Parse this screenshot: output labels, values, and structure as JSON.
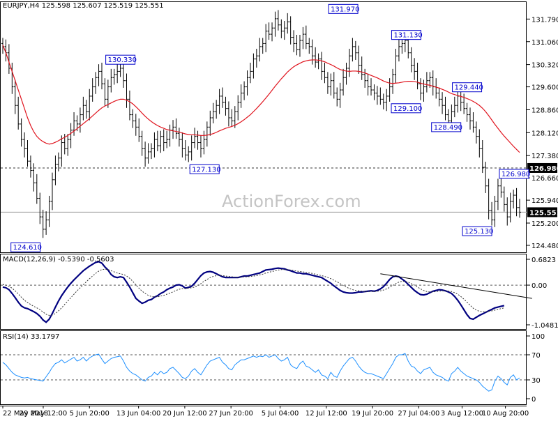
{
  "chart_data": [
    {
      "type": "candlestick",
      "panel": "price",
      "title": "EURJPY,H4  125.598 125.607 125.519 125.551",
      "watermark": "ActionForex.com",
      "ylim": [
        124.48,
        132.0
      ],
      "y_ticks": [
        "131.790",
        "131.060",
        "130.320",
        "129.600",
        "128.860",
        "128.120",
        "127.380",
        "126.660",
        "125.940",
        "125.200",
        "124.480"
      ],
      "levels": [
        {
          "value": 126.98,
          "label": "126.980",
          "style": "dashed",
          "label_color": "#000000",
          "text_color": "#ffffff"
        },
        {
          "value": 125.551,
          "label": "125.551",
          "style": "solid",
          "label_color": "#000000",
          "text_color": "#ffffff"
        }
      ],
      "moving_average_color": "#e0141e",
      "annotations": [
        {
          "text": "124.610",
          "idx": 13,
          "value": 124.61
        },
        {
          "text": "130.330",
          "idx": 38,
          "value": 130.33
        },
        {
          "text": "127.130",
          "idx": 60,
          "value": 127.13
        },
        {
          "text": "131.970",
          "idx": 110,
          "value": 131.97
        },
        {
          "text": "129.100",
          "idx": 135,
          "value": 129.1
        },
        {
          "text": "131.130",
          "idx": 136,
          "value": 131.13
        },
        {
          "text": "129.440",
          "idx": 150,
          "value": 129.44
        },
        {
          "text": "128.490",
          "idx": 148,
          "value": 128.49
        },
        {
          "text": "126.980",
          "idx": 160,
          "value": 126.98
        },
        {
          "text": "125.130",
          "idx": 158,
          "value": 125.13
        }
      ],
      "close": [
        130.9,
        130.7,
        130.2,
        129.6,
        129.0,
        128.4,
        127.9,
        127.6,
        127.2,
        126.9,
        126.5,
        126.0,
        125.4,
        125.0,
        125.3,
        125.9,
        126.6,
        127.1,
        127.3,
        127.8,
        127.6,
        127.9,
        128.2,
        128.5,
        128.4,
        128.7,
        129.0,
        128.8,
        129.3,
        129.6,
        129.9,
        130.1,
        129.7,
        129.2,
        129.6,
        129.9,
        130.0,
        130.1,
        130.2,
        129.8,
        129.2,
        128.7,
        128.5,
        128.3,
        128.0,
        127.6,
        127.3,
        127.5,
        127.6,
        127.9,
        127.7,
        128.0,
        127.8,
        127.9,
        128.2,
        128.3,
        128.1,
        127.9,
        127.6,
        127.4,
        127.5,
        127.8,
        128.0,
        127.8,
        127.6,
        127.9,
        128.3,
        128.6,
        128.8,
        129.0,
        129.3,
        129.1,
        128.9,
        128.6,
        128.5,
        128.8,
        129.1,
        129.4,
        129.6,
        129.9,
        130.1,
        130.5,
        130.6,
        130.9,
        131.0,
        131.4,
        131.3,
        131.5,
        131.8,
        131.6,
        131.4,
        131.5,
        131.7,
        131.2,
        131.0,
        130.8,
        131.1,
        131.3,
        131.0,
        130.9,
        130.6,
        130.4,
        130.5,
        130.1,
        129.9,
        129.6,
        129.8,
        129.4,
        129.2,
        129.5,
        129.9,
        130.2,
        130.6,
        130.9,
        130.7,
        130.3,
        130.0,
        129.8,
        129.6,
        129.5,
        129.4,
        129.3,
        129.2,
        129.1,
        129.3,
        129.6,
        130.0,
        130.6,
        130.9,
        131.0,
        131.1,
        130.7,
        130.3,
        130.1,
        129.7,
        129.4,
        129.6,
        129.8,
        129.9,
        129.6,
        129.4,
        129.2,
        129.0,
        128.7,
        128.5,
        128.8,
        129.0,
        129.3,
        129.1,
        128.9,
        128.7,
        128.5,
        128.3,
        128.0,
        127.6,
        127.0,
        126.4,
        125.6,
        125.3,
        125.9,
        126.4,
        126.2,
        125.8,
        125.4,
        125.9,
        126.1,
        125.7,
        125.551
      ],
      "ma": [
        130.95,
        130.7,
        130.4,
        130.1,
        129.8,
        129.5,
        129.2,
        128.9,
        128.6,
        128.35,
        128.15,
        128.0,
        127.9,
        127.83,
        127.78,
        127.75,
        127.77,
        127.81,
        127.86,
        127.92,
        127.97,
        128.03,
        128.1,
        128.17,
        128.25,
        128.33,
        128.41,
        128.49,
        128.57,
        128.66,
        128.75,
        128.84,
        128.92,
        128.98,
        129.03,
        129.08,
        129.13,
        129.17,
        129.2,
        129.2,
        129.17,
        129.12,
        129.05,
        128.96,
        128.86,
        128.75,
        128.65,
        128.56,
        128.48,
        128.41,
        128.35,
        128.3,
        128.26,
        128.22,
        128.2,
        128.18,
        128.16,
        128.14,
        128.11,
        128.08,
        128.06,
        128.05,
        128.05,
        128.04,
        128.03,
        128.03,
        128.04,
        128.06,
        128.09,
        128.13,
        128.18,
        128.22,
        128.26,
        128.29,
        128.32,
        128.36,
        128.41,
        128.47,
        128.54,
        128.62,
        128.7,
        128.8,
        128.9,
        129.01,
        129.12,
        129.24,
        129.36,
        129.49,
        129.62,
        129.74,
        129.86,
        129.97,
        130.08,
        130.17,
        130.25,
        130.31,
        130.36,
        130.41,
        130.44,
        130.46,
        130.47,
        130.47,
        130.46,
        130.44,
        130.41,
        130.36,
        130.32,
        130.27,
        130.21,
        130.16,
        130.13,
        130.11,
        130.1,
        130.11,
        130.11,
        130.1,
        130.08,
        130.05,
        130.01,
        129.97,
        129.93,
        129.89,
        129.84,
        129.79,
        129.75,
        129.72,
        129.71,
        129.72,
        129.73,
        129.75,
        129.77,
        129.78,
        129.78,
        129.77,
        129.75,
        129.72,
        129.69,
        129.67,
        129.65,
        129.62,
        129.59,
        129.56,
        129.52,
        129.48,
        129.43,
        129.38,
        129.35,
        129.32,
        129.29,
        129.26,
        129.22,
        129.18,
        129.13,
        129.07,
        129.0,
        128.91,
        128.8,
        128.67,
        128.53,
        128.39,
        128.26,
        128.13,
        128.01,
        127.9,
        127.79,
        127.68,
        127.58,
        127.48
      ]
    },
    {
      "type": "line",
      "panel": "macd",
      "title": "MACD(12,26,9) -0.5390 -0.5603",
      "ylim": [
        -1.0481,
        0.6823
      ],
      "y_ticks": [
        0.6823,
        0.0,
        -1.0481
      ],
      "y_tick_labels": [
        "0.6823",
        "0.00",
        "-1.0481"
      ],
      "zero_line": true,
      "series": [
        {
          "color": "#000080",
          "style": "thick",
          "values": [
            -0.05,
            -0.07,
            -0.12,
            -0.22,
            -0.33,
            -0.45,
            -0.55,
            -0.6,
            -0.62,
            -0.66,
            -0.7,
            -0.75,
            -0.82,
            -0.92,
            -0.98,
            -0.9,
            -0.75,
            -0.58,
            -0.42,
            -0.28,
            -0.16,
            -0.05,
            0.05,
            0.14,
            0.22,
            0.3,
            0.38,
            0.44,
            0.5,
            0.55,
            0.6,
            0.62,
            0.58,
            0.48,
            0.4,
            0.28,
            0.22,
            0.2,
            0.22,
            0.2,
            0.08,
            -0.05,
            -0.2,
            -0.35,
            -0.42,
            -0.48,
            -0.45,
            -0.4,
            -0.38,
            -0.32,
            -0.28,
            -0.22,
            -0.18,
            -0.12,
            -0.08,
            -0.05,
            0.0,
            0.01,
            -0.02,
            -0.08,
            -0.06,
            -0.03,
            0.05,
            0.15,
            0.25,
            0.32,
            0.35,
            0.36,
            0.34,
            0.3,
            0.26,
            0.22,
            0.2,
            0.2,
            0.2,
            0.2,
            0.2,
            0.22,
            0.24,
            0.24,
            0.26,
            0.28,
            0.3,
            0.32,
            0.36,
            0.4,
            0.41,
            0.42,
            0.44,
            0.45,
            0.44,
            0.43,
            0.4,
            0.38,
            0.35,
            0.32,
            0.32,
            0.3,
            0.3,
            0.28,
            0.26,
            0.24,
            0.22,
            0.2,
            0.15,
            0.1,
            0.05,
            -0.02,
            -0.08,
            -0.14,
            -0.18,
            -0.2,
            -0.21,
            -0.21,
            -0.2,
            -0.18,
            -0.18,
            -0.17,
            -0.16,
            -0.15,
            -0.16,
            -0.14,
            -0.1,
            -0.04,
            0.05,
            0.15,
            0.22,
            0.24,
            0.22,
            0.16,
            0.1,
            0.02,
            -0.06,
            -0.14,
            -0.2,
            -0.25,
            -0.26,
            -0.24,
            -0.2,
            -0.16,
            -0.14,
            -0.12,
            -0.13,
            -0.15,
            -0.18,
            -0.22,
            -0.3,
            -0.4,
            -0.52,
            -0.65,
            -0.78,
            -0.88,
            -0.9,
            -0.85,
            -0.8,
            -0.76,
            -0.72,
            -0.68,
            -0.64,
            -0.6,
            -0.58,
            -0.56,
            -0.54
          ]
        },
        {
          "color": "#333333",
          "style": "dotted",
          "values": [
            0.02,
            0.0,
            -0.03,
            -0.08,
            -0.15,
            -0.23,
            -0.32,
            -0.4,
            -0.46,
            -0.51,
            -0.56,
            -0.6,
            -0.65,
            -0.71,
            -0.77,
            -0.8,
            -0.79,
            -0.75,
            -0.68,
            -0.6,
            -0.51,
            -0.42,
            -0.33,
            -0.24,
            -0.15,
            -0.07,
            0.01,
            0.09,
            0.17,
            0.24,
            0.31,
            0.37,
            0.41,
            0.42,
            0.41,
            0.38,
            0.35,
            0.32,
            0.3,
            0.28,
            0.24,
            0.18,
            0.1,
            0.01,
            -0.08,
            -0.16,
            -0.22,
            -0.27,
            -0.3,
            -0.31,
            -0.31,
            -0.29,
            -0.27,
            -0.24,
            -0.21,
            -0.18,
            -0.14,
            -0.11,
            -0.09,
            -0.09,
            -0.08,
            -0.07,
            -0.05,
            -0.01,
            0.04,
            0.1,
            0.15,
            0.2,
            0.23,
            0.25,
            0.26,
            0.25,
            0.24,
            0.23,
            0.22,
            0.21,
            0.21,
            0.21,
            0.22,
            0.22,
            0.23,
            0.24,
            0.25,
            0.27,
            0.29,
            0.32,
            0.34,
            0.36,
            0.38,
            0.4,
            0.41,
            0.41,
            0.41,
            0.4,
            0.39,
            0.37,
            0.36,
            0.35,
            0.33,
            0.32,
            0.31,
            0.29,
            0.27,
            0.25,
            0.23,
            0.2,
            0.17,
            0.13,
            0.09,
            0.04,
            -0.01,
            -0.05,
            -0.09,
            -0.12,
            -0.14,
            -0.15,
            -0.16,
            -0.17,
            -0.17,
            -0.17,
            -0.17,
            -0.16,
            -0.15,
            -0.13,
            -0.1,
            -0.06,
            -0.01,
            0.04,
            0.08,
            0.1,
            0.1,
            0.08,
            0.04,
            0.0,
            -0.05,
            -0.1,
            -0.14,
            -0.17,
            -0.18,
            -0.18,
            -0.17,
            -0.16,
            -0.15,
            -0.15,
            -0.16,
            -0.17,
            -0.2,
            -0.24,
            -0.3,
            -0.37,
            -0.45,
            -0.53,
            -0.61,
            -0.66,
            -0.69,
            -0.7,
            -0.7,
            -0.69,
            -0.68,
            -0.66,
            -0.64,
            -0.62,
            -0.6
          ]
        }
      ],
      "trendline": {
        "from_idx": 122,
        "from_value": 0.3,
        "to_idx": 171,
        "to_value": -0.35
      }
    },
    {
      "type": "line",
      "panel": "rsi",
      "title": "RSI(14) 33.1797",
      "ylim": [
        0,
        100
      ],
      "y_ticks": [
        100,
        70,
        30,
        0
      ],
      "y_tick_labels": [
        "100",
        "70",
        "30",
        "0"
      ],
      "levels": [
        70,
        30
      ],
      "series": [
        {
          "color": "#1e90ff",
          "values": [
            58,
            54,
            48,
            42,
            38,
            36,
            34,
            33,
            34,
            32,
            31,
            30,
            29,
            28,
            35,
            42,
            50,
            56,
            58,
            62,
            57,
            60,
            63,
            66,
            60,
            62,
            66,
            60,
            65,
            68,
            70,
            71,
            63,
            56,
            60,
            64,
            66,
            67,
            68,
            60,
            50,
            44,
            40,
            38,
            34,
            30,
            28,
            34,
            36,
            42,
            38,
            44,
            40,
            42,
            48,
            50,
            45,
            40,
            34,
            32,
            36,
            44,
            48,
            42,
            38,
            46,
            54,
            60,
            62,
            64,
            66,
            58,
            54,
            48,
            46,
            54,
            58,
            62,
            62,
            64,
            66,
            68,
            66,
            68,
            67,
            70,
            66,
            68,
            70,
            64,
            60,
            62,
            66,
            54,
            50,
            48,
            56,
            60,
            52,
            50,
            46,
            42,
            46,
            38,
            36,
            32,
            42,
            36,
            34,
            44,
            52,
            58,
            64,
            66,
            60,
            52,
            46,
            42,
            40,
            40,
            38,
            36,
            34,
            32,
            40,
            48,
            56,
            66,
            70,
            70,
            72,
            60,
            52,
            50,
            44,
            40,
            46,
            48,
            50,
            42,
            38,
            36,
            34,
            30,
            28,
            40,
            44,
            50,
            44,
            40,
            36,
            34,
            32,
            30,
            26,
            20,
            16,
            12,
            14,
            28,
            36,
            32,
            26,
            22,
            34,
            38,
            30,
            33.18
          ]
        }
      ]
    }
  ],
  "x_axis": {
    "labels": [
      {
        "text": "22 May 2018",
        "idx": 0
      },
      {
        "text": "29 May 12:00",
        "idx": 14
      },
      {
        "text": "5 Jun 20:00",
        "idx": 30
      },
      {
        "text": "13 Jun 04:00",
        "idx": 47
      },
      {
        "text": "20 Jun 12:00",
        "idx": 63
      },
      {
        "text": "27 Jun 20:00",
        "idx": 79
      },
      {
        "text": "5 Jul 04:00",
        "idx": 96
      },
      {
        "text": "12 Jul 12:00",
        "idx": 112
      },
      {
        "text": "19 Jul 20:00",
        "idx": 128
      },
      {
        "text": "27 Jul 04:00",
        "idx": 144
      },
      {
        "text": "3 Aug 12:00",
        "idx": 159
      },
      {
        "text": "10 Aug 20:00",
        "idx": 174
      }
    ]
  }
}
